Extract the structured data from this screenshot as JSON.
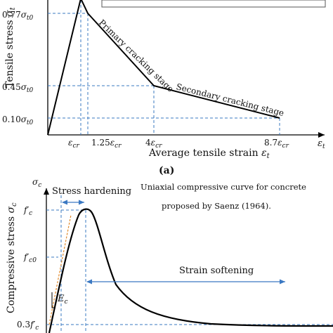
{
  "chart_data": [
    {
      "type": "line",
      "panel_label": "(a)",
      "xlabel": "Average tensile strain",
      "xlabel_symbol": "εt",
      "ylabel": "Tensile stress",
      "ylabel_symbol": "σt",
      "x_axis_end_label": "εt",
      "x_tick_labels": [
        "εcr",
        "1.25εcr",
        "4εcr",
        "8.7εcr"
      ],
      "y_tick_labels": [
        "0.77σt0",
        "0.45σt0",
        "0.10σt0"
      ],
      "x": [
        0,
        1,
        1.25,
        4,
        8.7
      ],
      "y": [
        0,
        1,
        0.77,
        0.45,
        0.1
      ],
      "annotations": [
        "Primary cracking stage",
        "Secondary cracking stage"
      ],
      "grid": false,
      "legend_box": true
    },
    {
      "type": "line",
      "ylabel": "Compressive stress",
      "ylabel_symbol": "σc",
      "y_axis_end_label": "σc",
      "y_tick_labels": [
        "f′c",
        "f′c0",
        "0.3f′c"
      ],
      "title_lines": [
        "Uniaxial compressive curve for concrete",
        "proposed by Saenz (1964)."
      ],
      "annotations": [
        "Stress hardening",
        "Strain softening",
        "Ec"
      ],
      "x": [
        0,
        0.25,
        0.5,
        0.75,
        1,
        1.25,
        1.5,
        2,
        2.5,
        3,
        4,
        5,
        6,
        8
      ],
      "y": [
        0,
        0.44,
        0.8,
        0.96,
        1,
        0.96,
        0.87,
        0.64,
        0.47,
        0.36,
        0.24,
        0.18,
        0.15,
        0.12
      ],
      "grid": false
    }
  ]
}
